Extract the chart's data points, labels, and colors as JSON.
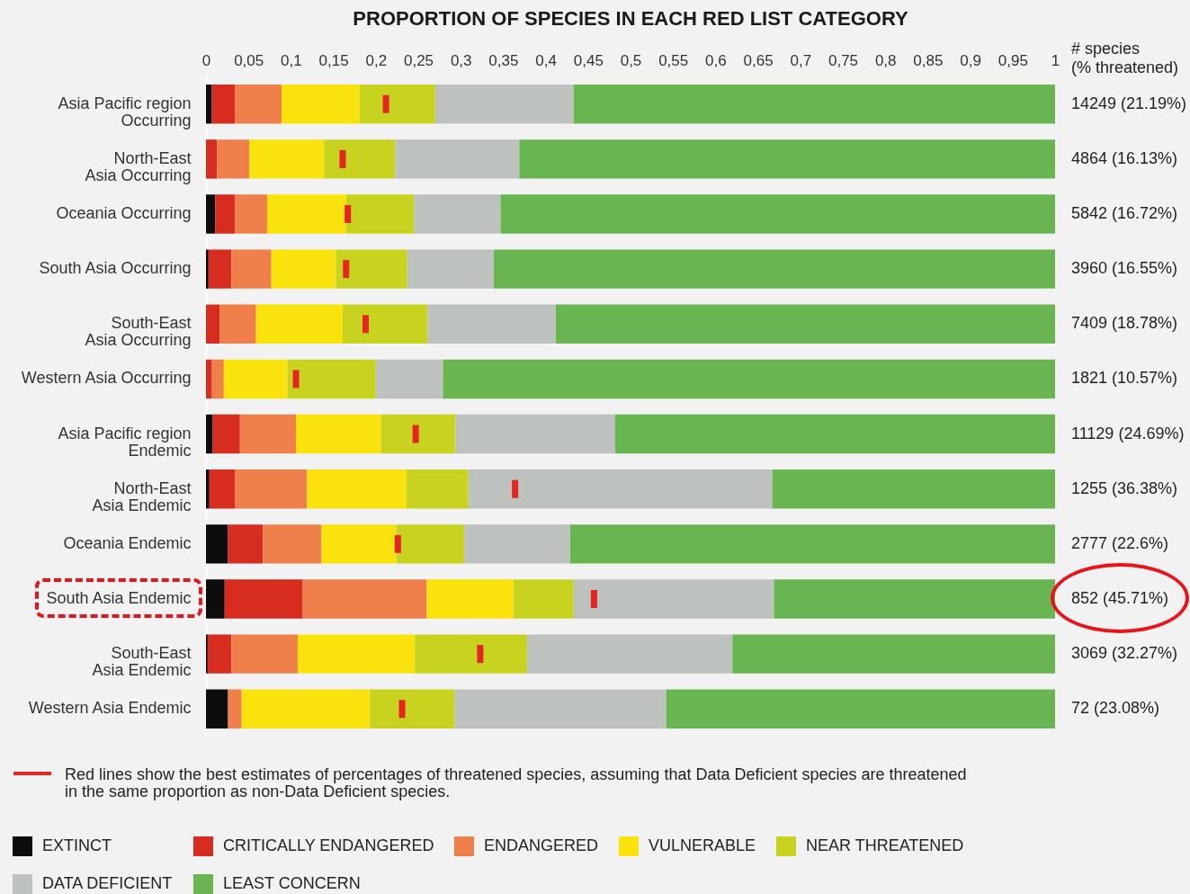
{
  "chart_data": {
    "type": "bar",
    "title": "PROPORTION OF SPECIES IN EACH RED LIST CATEGORY",
    "categories": [
      "Asia Pacific region\nOccurring",
      "North-East\nAsia Occurring",
      "Oceania Occurring",
      "South Asia Occurring",
      "South-East\nAsia Occurring",
      "Western Asia Occurring",
      "Asia Pacific region\nEndemic",
      "North-East\nAsia Endemic",
      "Oceania Endemic",
      "South Asia Endemic",
      "South-East\nAsia Endemic",
      "Western Asia Endemic"
    ],
    "orientation": "horizontal",
    "stacked": true,
    "series": [
      {
        "name": "EXTINCT",
        "color": "#0d0d0d",
        "values": [
          0.007,
          0,
          0.011,
          0.003,
          0,
          0,
          0.008,
          0.004,
          0.026,
          0.022,
          0.002,
          0.026
        ]
      },
      {
        "name": "CRITICALLY ENDANGERED",
        "color": "#d62d20",
        "values": [
          0.027,
          0.013,
          0.023,
          0.027,
          0.016,
          0.007,
          0.032,
          0.03,
          0.041,
          0.092,
          0.028,
          0
        ]
      },
      {
        "name": "ENDANGERED",
        "color": "#ef7f4b",
        "values": [
          0.055,
          0.038,
          0.038,
          0.047,
          0.043,
          0.014,
          0.066,
          0.085,
          0.069,
          0.146,
          0.078,
          0.016
        ]
      },
      {
        "name": "VULNERABLE",
        "color": "#fae20d",
        "values": [
          0.092,
          0.088,
          0.093,
          0.076,
          0.102,
          0.075,
          0.1,
          0.117,
          0.088,
          0.102,
          0.138,
          0.151
        ]
      },
      {
        "name": "NEAR THREATENED",
        "color": "#c8d31f",
        "values": [
          0.089,
          0.084,
          0.08,
          0.084,
          0.1,
          0.104,
          0.088,
          0.073,
          0.08,
          0.071,
          0.132,
          0.1
        ]
      },
      {
        "name": "DATA DEFICIENT",
        "color": "#bec2bf",
        "values": [
          0.163,
          0.146,
          0.102,
          0.102,
          0.151,
          0.079,
          0.188,
          0.358,
          0.125,
          0.236,
          0.242,
          0.249
        ]
      },
      {
        "name": "LEAST CONCERN",
        "color": "#69b552",
        "values": [
          0.567,
          0.631,
          0.653,
          0.661,
          0.588,
          0.721,
          0.518,
          0.333,
          0.571,
          0.331,
          0.38,
          0.458
        ]
      },
      {
        "type": "scatter",
        "name": "Red lines show the best estimates of percentages of threatened species, assuming that Data Deficient species are threatened\nin the same proportion as non-Data Deficient species.",
        "color": "#e52521",
        "values": [
          0.212,
          0.161,
          0.167,
          0.165,
          0.188,
          0.106,
          0.247,
          0.364,
          0.226,
          0.457,
          0.323,
          0.231
        ]
      }
    ],
    "xlim": [
      0,
      1
    ],
    "xticks": [
      0,
      {
        "value": 0.05,
        "label": "0,05"
      },
      {
        "value": 0.1,
        "label": "0,1"
      },
      {
        "value": 0.15,
        "label": "0,15"
      },
      {
        "value": 0.2,
        "label": "0,2"
      },
      {
        "value": 0.25,
        "label": "0,25"
      },
      {
        "value": 0.3,
        "label": "0,3"
      },
      {
        "value": 0.35,
        "label": "0,35"
      },
      {
        "value": 0.4,
        "label": "0,4"
      },
      {
        "value": 0.45,
        "label": "0,45"
      },
      {
        "value": 0.5,
        "label": "0,5"
      },
      {
        "value": 0.55,
        "label": "0,55"
      },
      {
        "value": 0.6,
        "label": "0,6"
      },
      {
        "value": 0.65,
        "label": "0,65"
      },
      {
        "value": 0.7,
        "label": "0,7"
      },
      {
        "value": 0.75,
        "label": "0,75"
      },
      {
        "value": 0.8,
        "label": "0,8"
      },
      {
        "value": 0.85,
        "label": "0,85"
      },
      {
        "value": 0.9,
        "label": "0,9"
      },
      {
        "value": 0.95,
        "label": "0,95"
      },
      1
    ],
    "totals": [
      "14249 (21.19%)",
      "4864 (16.13%)",
      "5842 (16.72%)",
      "3960 (16.55%)",
      "7409 (18.78%)",
      "1821 (10.57%)",
      "11129 (24.69%)",
      "1255 (36.38%)",
      "2777 (22.6%)",
      "852 (45.71%)",
      "3069 (32.27%)",
      "72 (23.08%)"
    ],
    "annotations": [
      "# species\n(% threatened)"
    ],
    "legend": "bottom"
  }
}
